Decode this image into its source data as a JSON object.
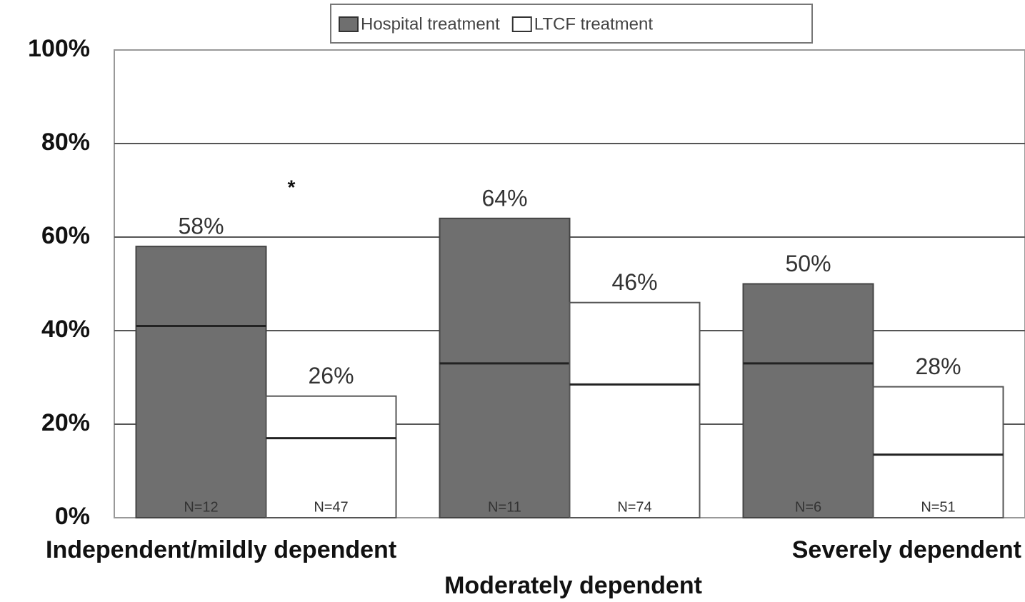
{
  "chart_data": {
    "type": "bar",
    "categories": [
      "Independent/mildly dependent",
      "Moderately dependent",
      "Severely dependent"
    ],
    "series": [
      {
        "name": "Hospital treatment",
        "color": "#6f6f6f",
        "values": [
          58,
          64,
          50
        ],
        "value_labels": [
          "58%",
          "64%",
          "50%"
        ],
        "marker_values": [
          41,
          33,
          33
        ],
        "n_labels": [
          "N=12",
          "N=11",
          "N=6"
        ]
      },
      {
        "name": "LTCF treatment",
        "color": "#ffffff",
        "values": [
          26,
          46,
          28
        ],
        "value_labels": [
          "26%",
          "46%",
          "28%"
        ],
        "marker_values": [
          17,
          28.5,
          13.5
        ],
        "n_labels": [
          "N=47",
          "N=74",
          "N=51"
        ]
      }
    ],
    "annotation": "*",
    "ylim": [
      0,
      100
    ],
    "yticks": [
      {
        "value": 0,
        "label": "0%"
      },
      {
        "value": 20,
        "label": "20%"
      },
      {
        "value": 40,
        "label": "40%"
      },
      {
        "value": 60,
        "label": "60%"
      },
      {
        "value": 80,
        "label": "80%"
      },
      {
        "value": 100,
        "label": "100%"
      }
    ],
    "grid": true,
    "legend": "top"
  }
}
